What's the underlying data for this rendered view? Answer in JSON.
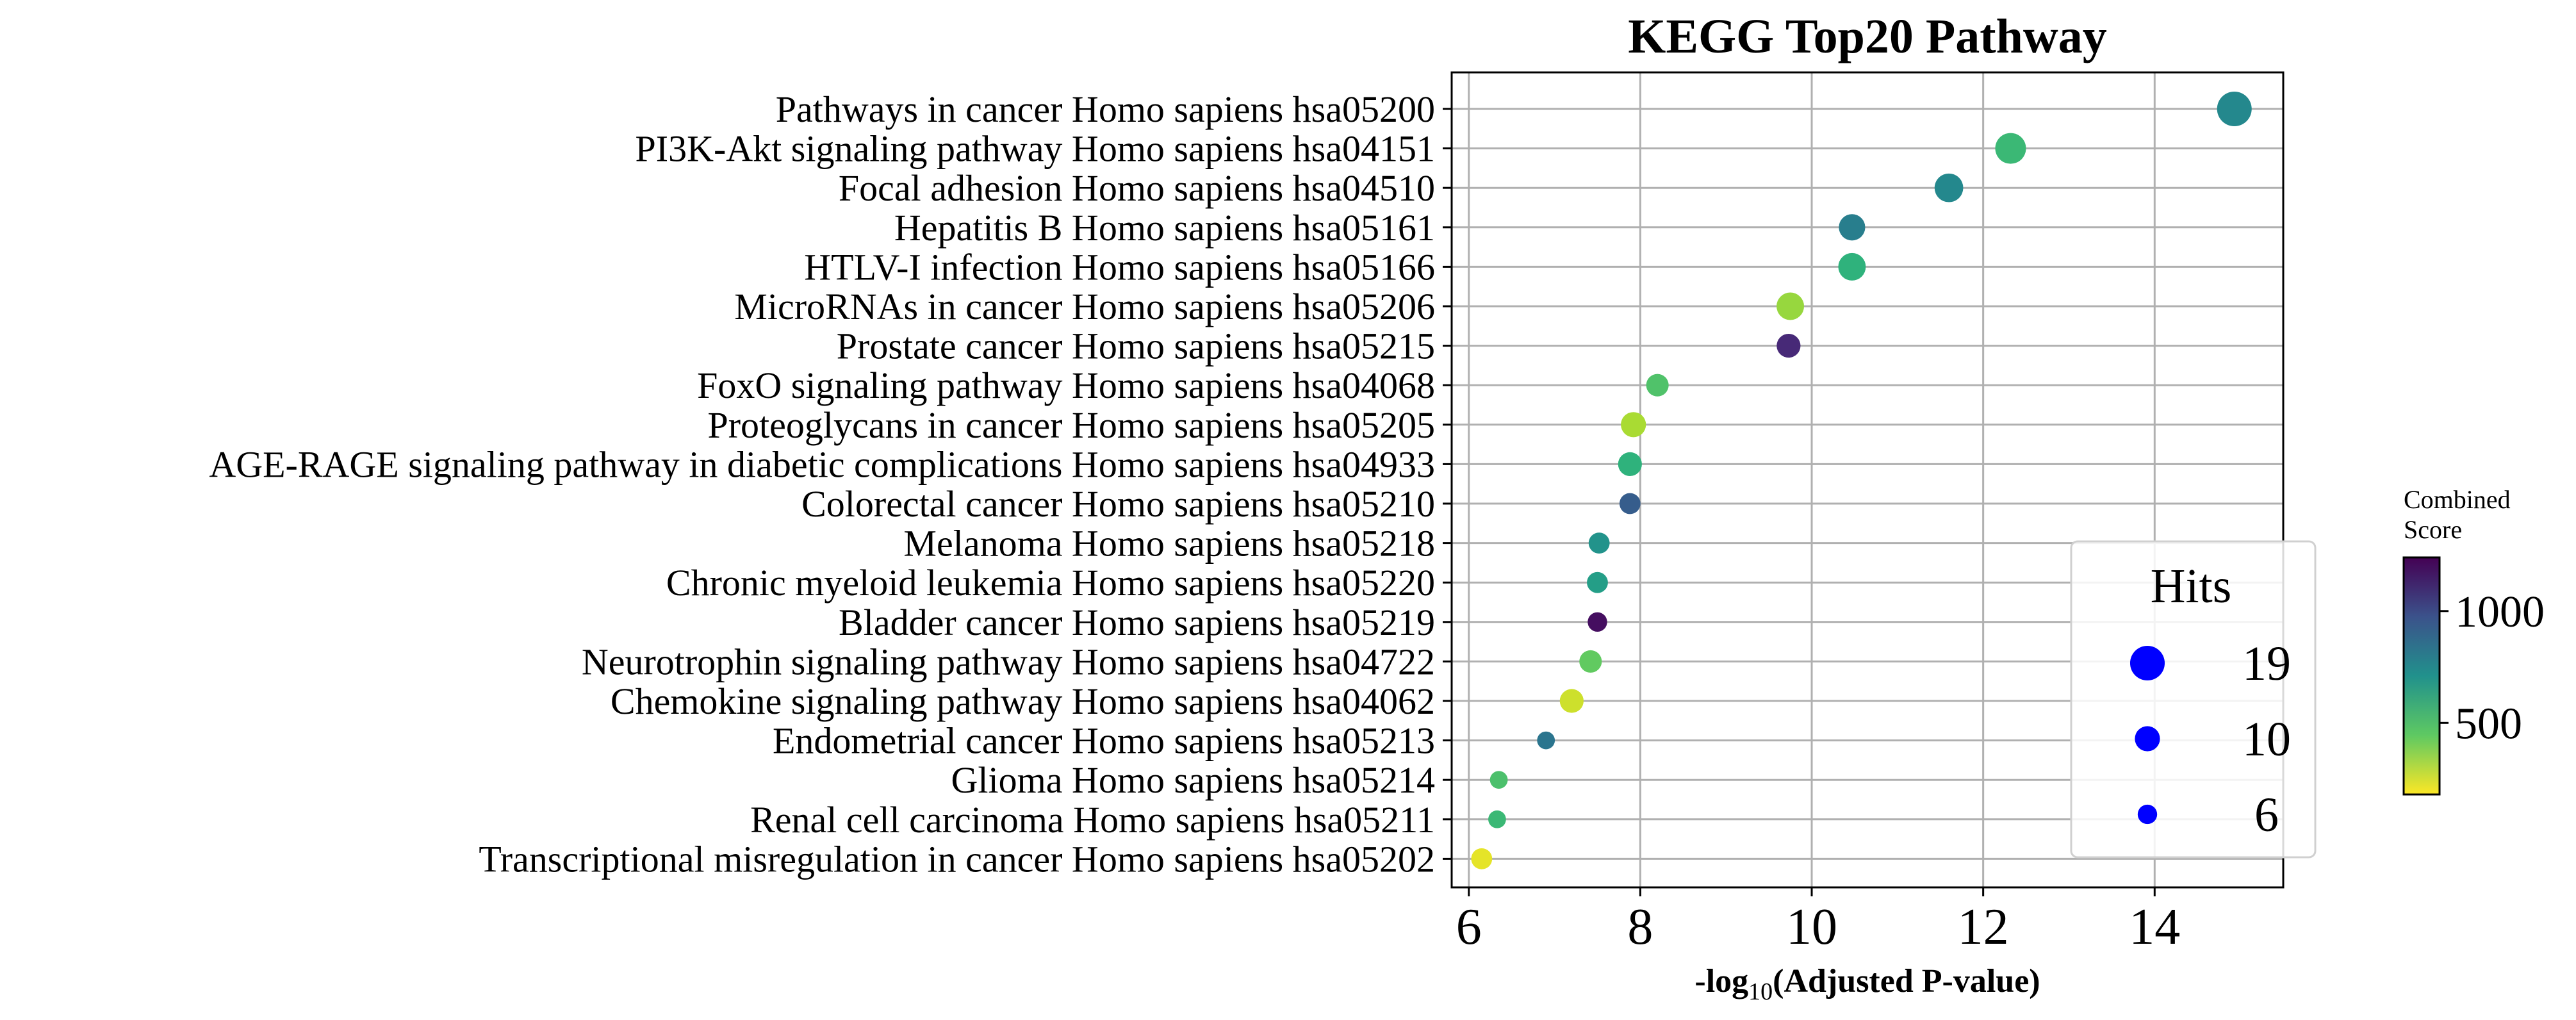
{
  "chart_data": {
    "type": "scatter",
    "title": "KEGG Top20 Pathway",
    "xlabel": "-log10(Adjusted P-value)",
    "xlabel_parts": {
      "prefix": "-log",
      "subscript": "10",
      "suffix": "(Adjusted P-value)"
    },
    "xlim": [
      5.8,
      15.5
    ],
    "xticks": [
      6,
      8,
      10,
      12,
      14
    ],
    "grid": true,
    "categories": [
      "Pathways in cancer Homo sapiens hsa05200",
      "PI3K-Akt signaling pathway Homo sapiens hsa04151",
      "Focal adhesion Homo sapiens hsa04510",
      "Hepatitis B Homo sapiens hsa05161",
      "HTLV-I infection Homo sapiens hsa05166",
      "MicroRNAs in cancer Homo sapiens hsa05206",
      "Prostate cancer Homo sapiens hsa05215",
      "FoxO signaling pathway Homo sapiens hsa04068",
      "Proteoglycans in cancer Homo sapiens hsa05205",
      "AGE-RAGE signaling pathway in diabetic complications Homo sapiens hsa04933",
      "Colorectal cancer Homo sapiens hsa05210",
      "Melanoma Homo sapiens hsa05218",
      "Chronic myeloid leukemia Homo sapiens hsa05220",
      "Bladder cancer Homo sapiens hsa05219",
      "Neurotrophin signaling pathway Homo sapiens hsa04722",
      "Chemokine signaling pathway Homo sapiens hsa04062",
      "Endometrial cancer Homo sapiens hsa05213",
      "Glioma Homo sapiens hsa05214",
      "Renal cell carcinoma Homo sapiens hsa05211",
      "Transcriptional misregulation in cancer Homo sapiens hsa05202"
    ],
    "points": [
      {
        "x": 14.93,
        "hits": 19,
        "score": 750
      },
      {
        "x": 12.32,
        "hits": 15,
        "score": 530
      },
      {
        "x": 11.6,
        "hits": 13,
        "score": 750
      },
      {
        "x": 10.47,
        "hits": 11,
        "score": 790
      },
      {
        "x": 10.47,
        "hits": 12,
        "score": 560
      },
      {
        "x": 9.75,
        "hits": 12,
        "score": 350
      },
      {
        "x": 9.73,
        "hits": 9,
        "score": 1120
      },
      {
        "x": 8.2,
        "hits": 8,
        "score": 480
      },
      {
        "x": 7.92,
        "hits": 10,
        "score": 320
      },
      {
        "x": 7.88,
        "hits": 9,
        "score": 560
      },
      {
        "x": 7.88,
        "hits": 7,
        "score": 930
      },
      {
        "x": 7.52,
        "hits": 7,
        "score": 700
      },
      {
        "x": 7.5,
        "hits": 7,
        "score": 650
      },
      {
        "x": 7.5,
        "hits": 6,
        "score": 1200
      },
      {
        "x": 7.42,
        "hits": 8,
        "score": 440
      },
      {
        "x": 7.2,
        "hits": 9,
        "score": 260
      },
      {
        "x": 6.9,
        "hits": 5,
        "score": 830
      },
      {
        "x": 6.35,
        "hits": 5,
        "score": 490
      },
      {
        "x": 6.33,
        "hits": 5,
        "score": 530
      },
      {
        "x": 6.15,
        "hits": 7,
        "score": 220
      }
    ],
    "size_legend": {
      "title": "Hits",
      "position": "lower-right",
      "color": "#0000ff",
      "entries": [
        {
          "label": "19",
          "hits": 19
        },
        {
          "label": "10",
          "hits": 10
        },
        {
          "label": "6",
          "hits": 6
        }
      ]
    },
    "colorbar": {
      "title_lines": [
        "Combined",
        "Score"
      ],
      "colormap": "viridis_r",
      "range": [
        180,
        1240
      ],
      "ticks": [
        {
          "label": "1000",
          "value": 1000
        },
        {
          "label": "500",
          "value": 500
        }
      ]
    }
  }
}
